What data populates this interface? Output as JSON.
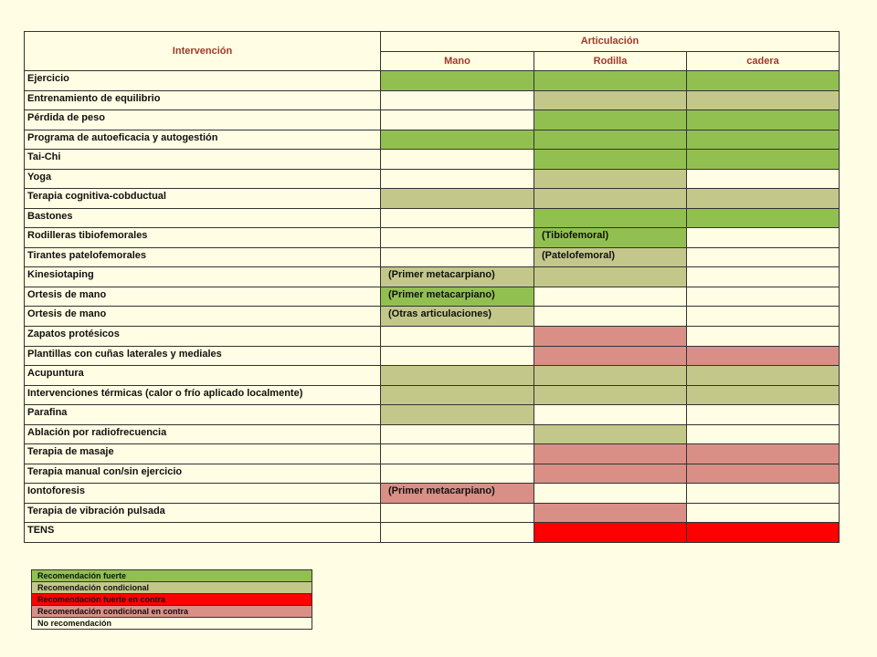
{
  "table": {
    "header": {
      "intervention": "Intervención",
      "joint": "Articulación",
      "columns": [
        "Mano",
        "Rodilla",
        "cadera"
      ]
    },
    "rows": [
      {
        "label": "Ejercicio",
        "cells": [
          {
            "color": "#92c050"
          },
          {
            "color": "#92c050"
          },
          {
            "color": "#92c050"
          }
        ]
      },
      {
        "label": "Entrenamiento de equilibrio",
        "cells": [
          null,
          {
            "color": "#c3c88a"
          },
          {
            "color": "#c3c88a"
          }
        ]
      },
      {
        "label": "Pérdida de peso",
        "cells": [
          null,
          {
            "color": "#92c050"
          },
          {
            "color": "#92c050"
          }
        ]
      },
      {
        "label": "Programa de autoeficacia y autogestión",
        "cells": [
          {
            "color": "#92c050"
          },
          {
            "color": "#92c050"
          },
          {
            "color": "#92c050"
          }
        ]
      },
      {
        "label": "Tai-Chi",
        "cells": [
          null,
          {
            "color": "#92c050"
          },
          {
            "color": "#92c050"
          }
        ]
      },
      {
        "label": "Yoga",
        "cells": [
          null,
          {
            "color": "#c3c88a"
          },
          null
        ]
      },
      {
        "label": "Terapia cognitiva-cobductual",
        "cells": [
          {
            "color": "#c3c88a"
          },
          {
            "color": "#c3c88a"
          },
          {
            "color": "#c3c88a"
          }
        ]
      },
      {
        "label": "Bastones",
        "cells": [
          null,
          {
            "color": "#92c050"
          },
          {
            "color": "#92c050"
          }
        ]
      },
      {
        "label": "Rodilleras tibiofemorales",
        "cells": [
          null,
          {
            "color": "#92c050",
            "text": "(Tibiofemoral)"
          },
          null
        ]
      },
      {
        "label": "Tirantes patelofemorales",
        "cells": [
          null,
          {
            "color": "#c3c88a",
            "text": "(Patelofemoral)"
          },
          null
        ]
      },
      {
        "label": "Kinesiotaping",
        "cells": [
          {
            "color": "#c3c88a",
            "text": "(Primer metacarpiano)"
          },
          {
            "color": "#c3c88a"
          },
          null
        ]
      },
      {
        "label": "Ortesis de mano",
        "cells": [
          {
            "color": "#92c050",
            "text": "(Primer metacarpiano)"
          },
          null,
          null
        ]
      },
      {
        "label": "Ortesis de mano",
        "cells": [
          {
            "color": "#c3c88a",
            "text": "(Otras articulaciones)"
          },
          null,
          null
        ]
      },
      {
        "label": "Zapatos protésicos",
        "cells": [
          null,
          {
            "color": "#da8f86"
          },
          null
        ]
      },
      {
        "label": "Plantillas con cuñas laterales y mediales",
        "cells": [
          null,
          {
            "color": "#da8f86"
          },
          {
            "color": "#da8f86"
          }
        ]
      },
      {
        "label": "Acupuntura",
        "cells": [
          {
            "color": "#c3c88a"
          },
          {
            "color": "#c3c88a"
          },
          {
            "color": "#c3c88a"
          }
        ]
      },
      {
        "label": "Intervenciones térmicas (calor o frío aplicado localmente)",
        "cells": [
          {
            "color": "#c3c88a"
          },
          {
            "color": "#c3c88a"
          },
          {
            "color": "#c3c88a"
          }
        ]
      },
      {
        "label": "Parafina",
        "cells": [
          {
            "color": "#c3c88a"
          },
          null,
          null
        ]
      },
      {
        "label": "Ablación por radiofrecuencia",
        "cells": [
          null,
          {
            "color": "#c3c88a"
          },
          null
        ]
      },
      {
        "label": "Terapia de masaje",
        "cells": [
          null,
          {
            "color": "#da8f86"
          },
          {
            "color": "#da8f86"
          }
        ]
      },
      {
        "label": "Terapia manual con/sin ejercicio",
        "cells": [
          null,
          {
            "color": "#da8f86"
          },
          {
            "color": "#da8f86"
          }
        ]
      },
      {
        "label": "Iontoforesis",
        "cells": [
          {
            "color": "#da8f86",
            "text": "(Primer metacarpiano)"
          },
          null,
          null
        ]
      },
      {
        "label": "Terapia de vibración pulsada",
        "cells": [
          null,
          {
            "color": "#da8f86"
          },
          null
        ]
      },
      {
        "label": "TENS",
        "cells": [
          null,
          {
            "color": "#ff0000"
          },
          {
            "color": "#ff0000"
          }
        ]
      }
    ]
  },
  "legend": [
    {
      "label": "Recomendación fuerte",
      "color": "#92c050"
    },
    {
      "label": "Recomendación condicional",
      "color": "#c3c88a"
    },
    {
      "label": "Recomendación fuerte en contra",
      "color": "#ff0000"
    },
    {
      "label": "Recomendación condicional en contra",
      "color": "#da8f86"
    },
    {
      "label": "No recomendación",
      "color": "#fffde3"
    }
  ]
}
